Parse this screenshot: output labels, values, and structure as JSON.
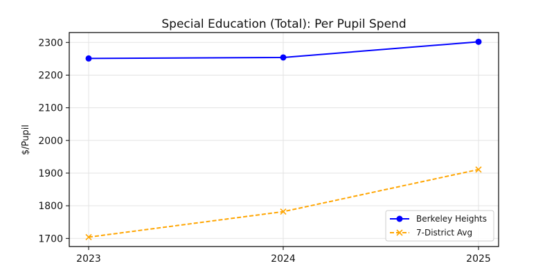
{
  "chart_data": {
    "type": "line",
    "title": "Special Education (Total): Per Pupil Spend",
    "xlabel": "",
    "ylabel": "$/Pupil",
    "categories": [
      "2023",
      "2024",
      "2025"
    ],
    "x": [
      2023,
      2024,
      2025
    ],
    "ylim": [
      1680,
      2325
    ],
    "yticks": [
      1700,
      1800,
      1900,
      2000,
      2100,
      2200,
      2300
    ],
    "grid": true,
    "legend_position": "lower right",
    "series": [
      {
        "name": "Berkeley Heights",
        "values": [
          2251,
          2254,
          2302
        ],
        "color": "#0000ff",
        "marker": "circle",
        "linestyle": "solid"
      },
      {
        "name": "7-District Avg",
        "values": [
          1704,
          1782,
          1911
        ],
        "color": "#ffa500",
        "marker": "x",
        "linestyle": "dashed"
      }
    ]
  }
}
